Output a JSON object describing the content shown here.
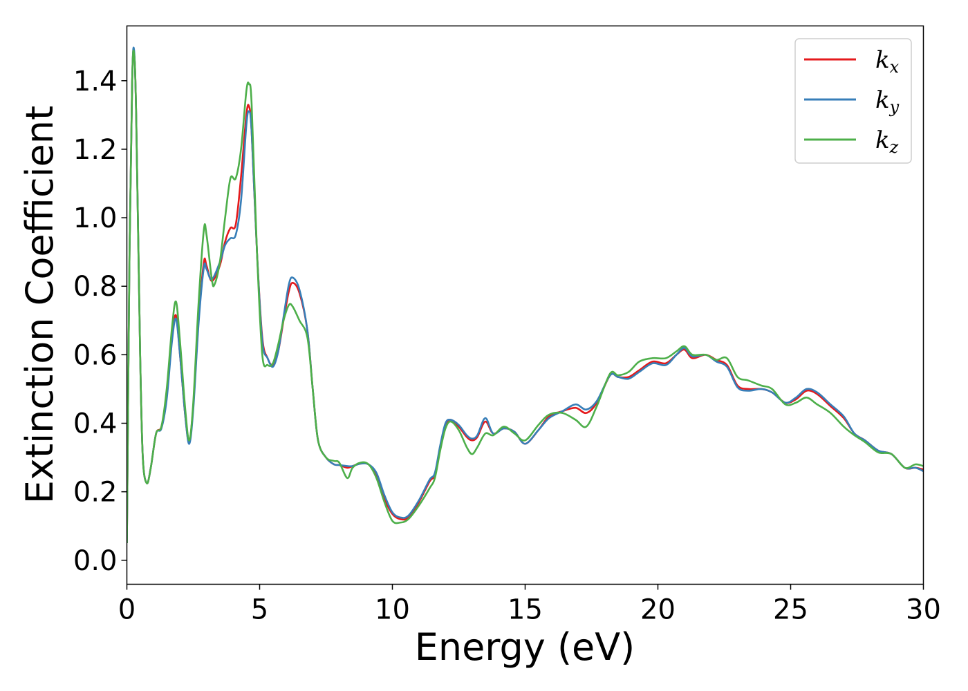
{
  "chart_data": {
    "type": "line",
    "xlabel": "Energy (eV)",
    "ylabel": "Extinction Coefficient",
    "xlim": [
      0,
      30
    ],
    "ylim": [
      -0.07,
      1.56
    ],
    "xticks": [
      0,
      5,
      10,
      15,
      20,
      25,
      30
    ],
    "yticks": [
      0.0,
      0.2,
      0.4,
      0.6,
      0.8,
      1.0,
      1.2,
      1.4
    ],
    "xtick_labels": [
      "0",
      "5",
      "10",
      "15",
      "20",
      "25",
      "30"
    ],
    "ytick_labels": [
      "0.0",
      "0.2",
      "0.4",
      "0.6",
      "0.8",
      "1.0",
      "1.2",
      "1.4"
    ],
    "grid": false,
    "legend_position": "top-right",
    "series": [
      {
        "name": "k",
        "subscript": "x",
        "color": "#e41a1c",
        "points": [
          [
            0,
            0.05
          ],
          [
            0.1,
            0.9
          ],
          [
            0.2,
            1.4
          ],
          [
            0.27,
            1.48
          ],
          [
            0.35,
            1.3
          ],
          [
            0.5,
            0.6
          ],
          [
            0.6,
            0.3
          ],
          [
            0.75,
            0.225
          ],
          [
            0.9,
            0.27
          ],
          [
            1.1,
            0.37
          ],
          [
            1.3,
            0.39
          ],
          [
            1.5,
            0.48
          ],
          [
            1.7,
            0.65
          ],
          [
            1.85,
            0.715
          ],
          [
            2.0,
            0.6
          ],
          [
            2.2,
            0.42
          ],
          [
            2.35,
            0.345
          ],
          [
            2.5,
            0.45
          ],
          [
            2.7,
            0.7
          ],
          [
            2.9,
            0.87
          ],
          [
            3.0,
            0.86
          ],
          [
            3.2,
            0.815
          ],
          [
            3.5,
            0.86
          ],
          [
            3.7,
            0.93
          ],
          [
            3.9,
            0.97
          ],
          [
            4.1,
            0.98
          ],
          [
            4.3,
            1.12
          ],
          [
            4.5,
            1.3
          ],
          [
            4.6,
            1.325
          ],
          [
            4.7,
            1.25
          ],
          [
            4.9,
            0.9
          ],
          [
            5.1,
            0.65
          ],
          [
            5.3,
            0.59
          ],
          [
            5.5,
            0.57
          ],
          [
            5.7,
            0.61
          ],
          [
            5.9,
            0.7
          ],
          [
            6.1,
            0.785
          ],
          [
            6.25,
            0.81
          ],
          [
            6.5,
            0.78
          ],
          [
            6.8,
            0.67
          ],
          [
            7.0,
            0.5
          ],
          [
            7.2,
            0.35
          ],
          [
            7.5,
            0.3
          ],
          [
            7.8,
            0.28
          ],
          [
            8.0,
            0.278
          ],
          [
            8.3,
            0.27
          ],
          [
            8.5,
            0.275
          ],
          [
            8.8,
            0.282
          ],
          [
            9.1,
            0.28
          ],
          [
            9.4,
            0.25
          ],
          [
            9.7,
            0.18
          ],
          [
            10.0,
            0.135
          ],
          [
            10.3,
            0.12
          ],
          [
            10.6,
            0.125
          ],
          [
            11.0,
            0.17
          ],
          [
            11.4,
            0.23
          ],
          [
            11.6,
            0.25
          ],
          [
            11.8,
            0.33
          ],
          [
            12.0,
            0.395
          ],
          [
            12.2,
            0.41
          ],
          [
            12.5,
            0.39
          ],
          [
            12.8,
            0.36
          ],
          [
            13.0,
            0.35
          ],
          [
            13.2,
            0.36
          ],
          [
            13.5,
            0.405
          ],
          [
            13.8,
            0.37
          ],
          [
            14.2,
            0.385
          ],
          [
            14.6,
            0.375
          ],
          [
            15.0,
            0.34
          ],
          [
            15.5,
            0.38
          ],
          [
            15.9,
            0.42
          ],
          [
            16.4,
            0.435
          ],
          [
            16.9,
            0.445
          ],
          [
            17.3,
            0.43
          ],
          [
            17.7,
            0.46
          ],
          [
            18.2,
            0.54
          ],
          [
            18.5,
            0.535
          ],
          [
            18.9,
            0.535
          ],
          [
            19.3,
            0.555
          ],
          [
            19.8,
            0.58
          ],
          [
            20.3,
            0.575
          ],
          [
            20.7,
            0.6
          ],
          [
            21.0,
            0.615
          ],
          [
            21.3,
            0.59
          ],
          [
            21.8,
            0.6
          ],
          [
            22.2,
            0.585
          ],
          [
            22.6,
            0.57
          ],
          [
            23.0,
            0.51
          ],
          [
            23.4,
            0.5
          ],
          [
            23.9,
            0.5
          ],
          [
            24.3,
            0.49
          ],
          [
            24.8,
            0.46
          ],
          [
            25.2,
            0.47
          ],
          [
            25.6,
            0.495
          ],
          [
            26.0,
            0.485
          ],
          [
            26.5,
            0.45
          ],
          [
            27.0,
            0.415
          ],
          [
            27.4,
            0.37
          ],
          [
            27.8,
            0.35
          ],
          [
            28.3,
            0.32
          ],
          [
            28.8,
            0.31
          ],
          [
            29.3,
            0.27
          ],
          [
            29.7,
            0.27
          ],
          [
            30.0,
            0.265
          ]
        ]
      },
      {
        "name": "k",
        "subscript": "y",
        "color": "#377eb8",
        "points": [
          [
            0,
            0.05
          ],
          [
            0.1,
            0.9
          ],
          [
            0.2,
            1.4
          ],
          [
            0.27,
            1.49
          ],
          [
            0.35,
            1.3
          ],
          [
            0.5,
            0.6
          ],
          [
            0.6,
            0.3
          ],
          [
            0.75,
            0.225
          ],
          [
            0.9,
            0.27
          ],
          [
            1.1,
            0.37
          ],
          [
            1.3,
            0.385
          ],
          [
            1.5,
            0.47
          ],
          [
            1.7,
            0.64
          ],
          [
            1.85,
            0.705
          ],
          [
            2.0,
            0.6
          ],
          [
            2.2,
            0.42
          ],
          [
            2.35,
            0.34
          ],
          [
            2.5,
            0.44
          ],
          [
            2.7,
            0.69
          ],
          [
            2.9,
            0.855
          ],
          [
            3.0,
            0.85
          ],
          [
            3.2,
            0.82
          ],
          [
            3.5,
            0.87
          ],
          [
            3.7,
            0.92
          ],
          [
            3.9,
            0.94
          ],
          [
            4.1,
            0.95
          ],
          [
            4.3,
            1.05
          ],
          [
            4.5,
            1.27
          ],
          [
            4.6,
            1.31
          ],
          [
            4.7,
            1.25
          ],
          [
            4.9,
            0.9
          ],
          [
            5.1,
            0.64
          ],
          [
            5.3,
            0.59
          ],
          [
            5.5,
            0.565
          ],
          [
            5.7,
            0.61
          ],
          [
            5.9,
            0.71
          ],
          [
            6.1,
            0.805
          ],
          [
            6.25,
            0.825
          ],
          [
            6.5,
            0.79
          ],
          [
            6.8,
            0.67
          ],
          [
            7.0,
            0.5
          ],
          [
            7.2,
            0.35
          ],
          [
            7.5,
            0.3
          ],
          [
            7.8,
            0.28
          ],
          [
            8.0,
            0.278
          ],
          [
            8.3,
            0.275
          ],
          [
            8.5,
            0.275
          ],
          [
            8.8,
            0.282
          ],
          [
            9.1,
            0.28
          ],
          [
            9.4,
            0.255
          ],
          [
            9.7,
            0.19
          ],
          [
            10.0,
            0.14
          ],
          [
            10.3,
            0.125
          ],
          [
            10.6,
            0.13
          ],
          [
            11.0,
            0.175
          ],
          [
            11.4,
            0.235
          ],
          [
            11.6,
            0.255
          ],
          [
            11.8,
            0.335
          ],
          [
            12.0,
            0.4
          ],
          [
            12.2,
            0.41
          ],
          [
            12.5,
            0.395
          ],
          [
            12.8,
            0.365
          ],
          [
            13.0,
            0.355
          ],
          [
            13.2,
            0.365
          ],
          [
            13.5,
            0.415
          ],
          [
            13.8,
            0.37
          ],
          [
            14.2,
            0.385
          ],
          [
            14.6,
            0.375
          ],
          [
            15.0,
            0.34
          ],
          [
            15.5,
            0.38
          ],
          [
            15.9,
            0.415
          ],
          [
            16.4,
            0.435
          ],
          [
            16.9,
            0.455
          ],
          [
            17.3,
            0.44
          ],
          [
            17.7,
            0.465
          ],
          [
            18.2,
            0.54
          ],
          [
            18.5,
            0.535
          ],
          [
            18.9,
            0.53
          ],
          [
            19.3,
            0.55
          ],
          [
            19.8,
            0.575
          ],
          [
            20.3,
            0.57
          ],
          [
            20.7,
            0.6
          ],
          [
            21.0,
            0.62
          ],
          [
            21.3,
            0.595
          ],
          [
            21.8,
            0.6
          ],
          [
            22.2,
            0.58
          ],
          [
            22.6,
            0.565
          ],
          [
            23.0,
            0.505
          ],
          [
            23.4,
            0.495
          ],
          [
            23.9,
            0.5
          ],
          [
            24.3,
            0.49
          ],
          [
            24.8,
            0.46
          ],
          [
            25.2,
            0.475
          ],
          [
            25.6,
            0.5
          ],
          [
            26.0,
            0.49
          ],
          [
            26.5,
            0.455
          ],
          [
            27.0,
            0.42
          ],
          [
            27.4,
            0.37
          ],
          [
            27.8,
            0.35
          ],
          [
            28.3,
            0.32
          ],
          [
            28.8,
            0.31
          ],
          [
            29.3,
            0.27
          ],
          [
            29.7,
            0.27
          ],
          [
            30.0,
            0.26
          ]
        ]
      },
      {
        "name": "k",
        "subscript": "z",
        "color": "#4daf4a",
        "points": [
          [
            0,
            0.05
          ],
          [
            0.1,
            0.9
          ],
          [
            0.2,
            1.4
          ],
          [
            0.27,
            1.48
          ],
          [
            0.35,
            1.3
          ],
          [
            0.5,
            0.6
          ],
          [
            0.6,
            0.3
          ],
          [
            0.75,
            0.225
          ],
          [
            0.9,
            0.27
          ],
          [
            1.1,
            0.37
          ],
          [
            1.3,
            0.39
          ],
          [
            1.5,
            0.5
          ],
          [
            1.7,
            0.68
          ],
          [
            1.85,
            0.755
          ],
          [
            2.0,
            0.64
          ],
          [
            2.2,
            0.44
          ],
          [
            2.35,
            0.35
          ],
          [
            2.5,
            0.46
          ],
          [
            2.7,
            0.75
          ],
          [
            2.9,
            0.965
          ],
          [
            3.0,
            0.95
          ],
          [
            3.2,
            0.82
          ],
          [
            3.3,
            0.805
          ],
          [
            3.5,
            0.87
          ],
          [
            3.7,
            1.0
          ],
          [
            3.9,
            1.115
          ],
          [
            4.1,
            1.115
          ],
          [
            4.3,
            1.2
          ],
          [
            4.5,
            1.37
          ],
          [
            4.6,
            1.39
          ],
          [
            4.7,
            1.33
          ],
          [
            4.9,
            0.9
          ],
          [
            5.1,
            0.6
          ],
          [
            5.3,
            0.57
          ],
          [
            5.5,
            0.575
          ],
          [
            5.7,
            0.63
          ],
          [
            5.9,
            0.7
          ],
          [
            6.1,
            0.745
          ],
          [
            6.25,
            0.74
          ],
          [
            6.5,
            0.7
          ],
          [
            6.8,
            0.65
          ],
          [
            7.0,
            0.5
          ],
          [
            7.2,
            0.35
          ],
          [
            7.5,
            0.3
          ],
          [
            7.8,
            0.29
          ],
          [
            8.0,
            0.285
          ],
          [
            8.3,
            0.24
          ],
          [
            8.5,
            0.27
          ],
          [
            8.8,
            0.285
          ],
          [
            9.1,
            0.28
          ],
          [
            9.4,
            0.24
          ],
          [
            9.7,
            0.17
          ],
          [
            10.0,
            0.115
          ],
          [
            10.3,
            0.11
          ],
          [
            10.6,
            0.12
          ],
          [
            11.0,
            0.16
          ],
          [
            11.4,
            0.21
          ],
          [
            11.6,
            0.24
          ],
          [
            11.8,
            0.32
          ],
          [
            12.0,
            0.385
          ],
          [
            12.2,
            0.405
          ],
          [
            12.5,
            0.38
          ],
          [
            12.8,
            0.33
          ],
          [
            13.0,
            0.31
          ],
          [
            13.2,
            0.33
          ],
          [
            13.5,
            0.37
          ],
          [
            13.8,
            0.365
          ],
          [
            14.2,
            0.39
          ],
          [
            14.6,
            0.37
          ],
          [
            15.0,
            0.35
          ],
          [
            15.5,
            0.395
          ],
          [
            15.9,
            0.425
          ],
          [
            16.4,
            0.43
          ],
          [
            16.9,
            0.41
          ],
          [
            17.3,
            0.39
          ],
          [
            17.7,
            0.45
          ],
          [
            18.2,
            0.545
          ],
          [
            18.5,
            0.54
          ],
          [
            18.9,
            0.55
          ],
          [
            19.3,
            0.58
          ],
          [
            19.8,
            0.59
          ],
          [
            20.3,
            0.59
          ],
          [
            20.7,
            0.61
          ],
          [
            21.0,
            0.625
          ],
          [
            21.3,
            0.6
          ],
          [
            21.8,
            0.6
          ],
          [
            22.2,
            0.585
          ],
          [
            22.6,
            0.59
          ],
          [
            23.0,
            0.535
          ],
          [
            23.4,
            0.525
          ],
          [
            23.9,
            0.51
          ],
          [
            24.3,
            0.5
          ],
          [
            24.8,
            0.455
          ],
          [
            25.2,
            0.46
          ],
          [
            25.6,
            0.475
          ],
          [
            26.0,
            0.455
          ],
          [
            26.5,
            0.43
          ],
          [
            27.0,
            0.39
          ],
          [
            27.4,
            0.365
          ],
          [
            27.8,
            0.345
          ],
          [
            28.3,
            0.315
          ],
          [
            28.8,
            0.31
          ],
          [
            29.3,
            0.27
          ],
          [
            29.7,
            0.28
          ],
          [
            30.0,
            0.275
          ]
        ]
      }
    ]
  }
}
